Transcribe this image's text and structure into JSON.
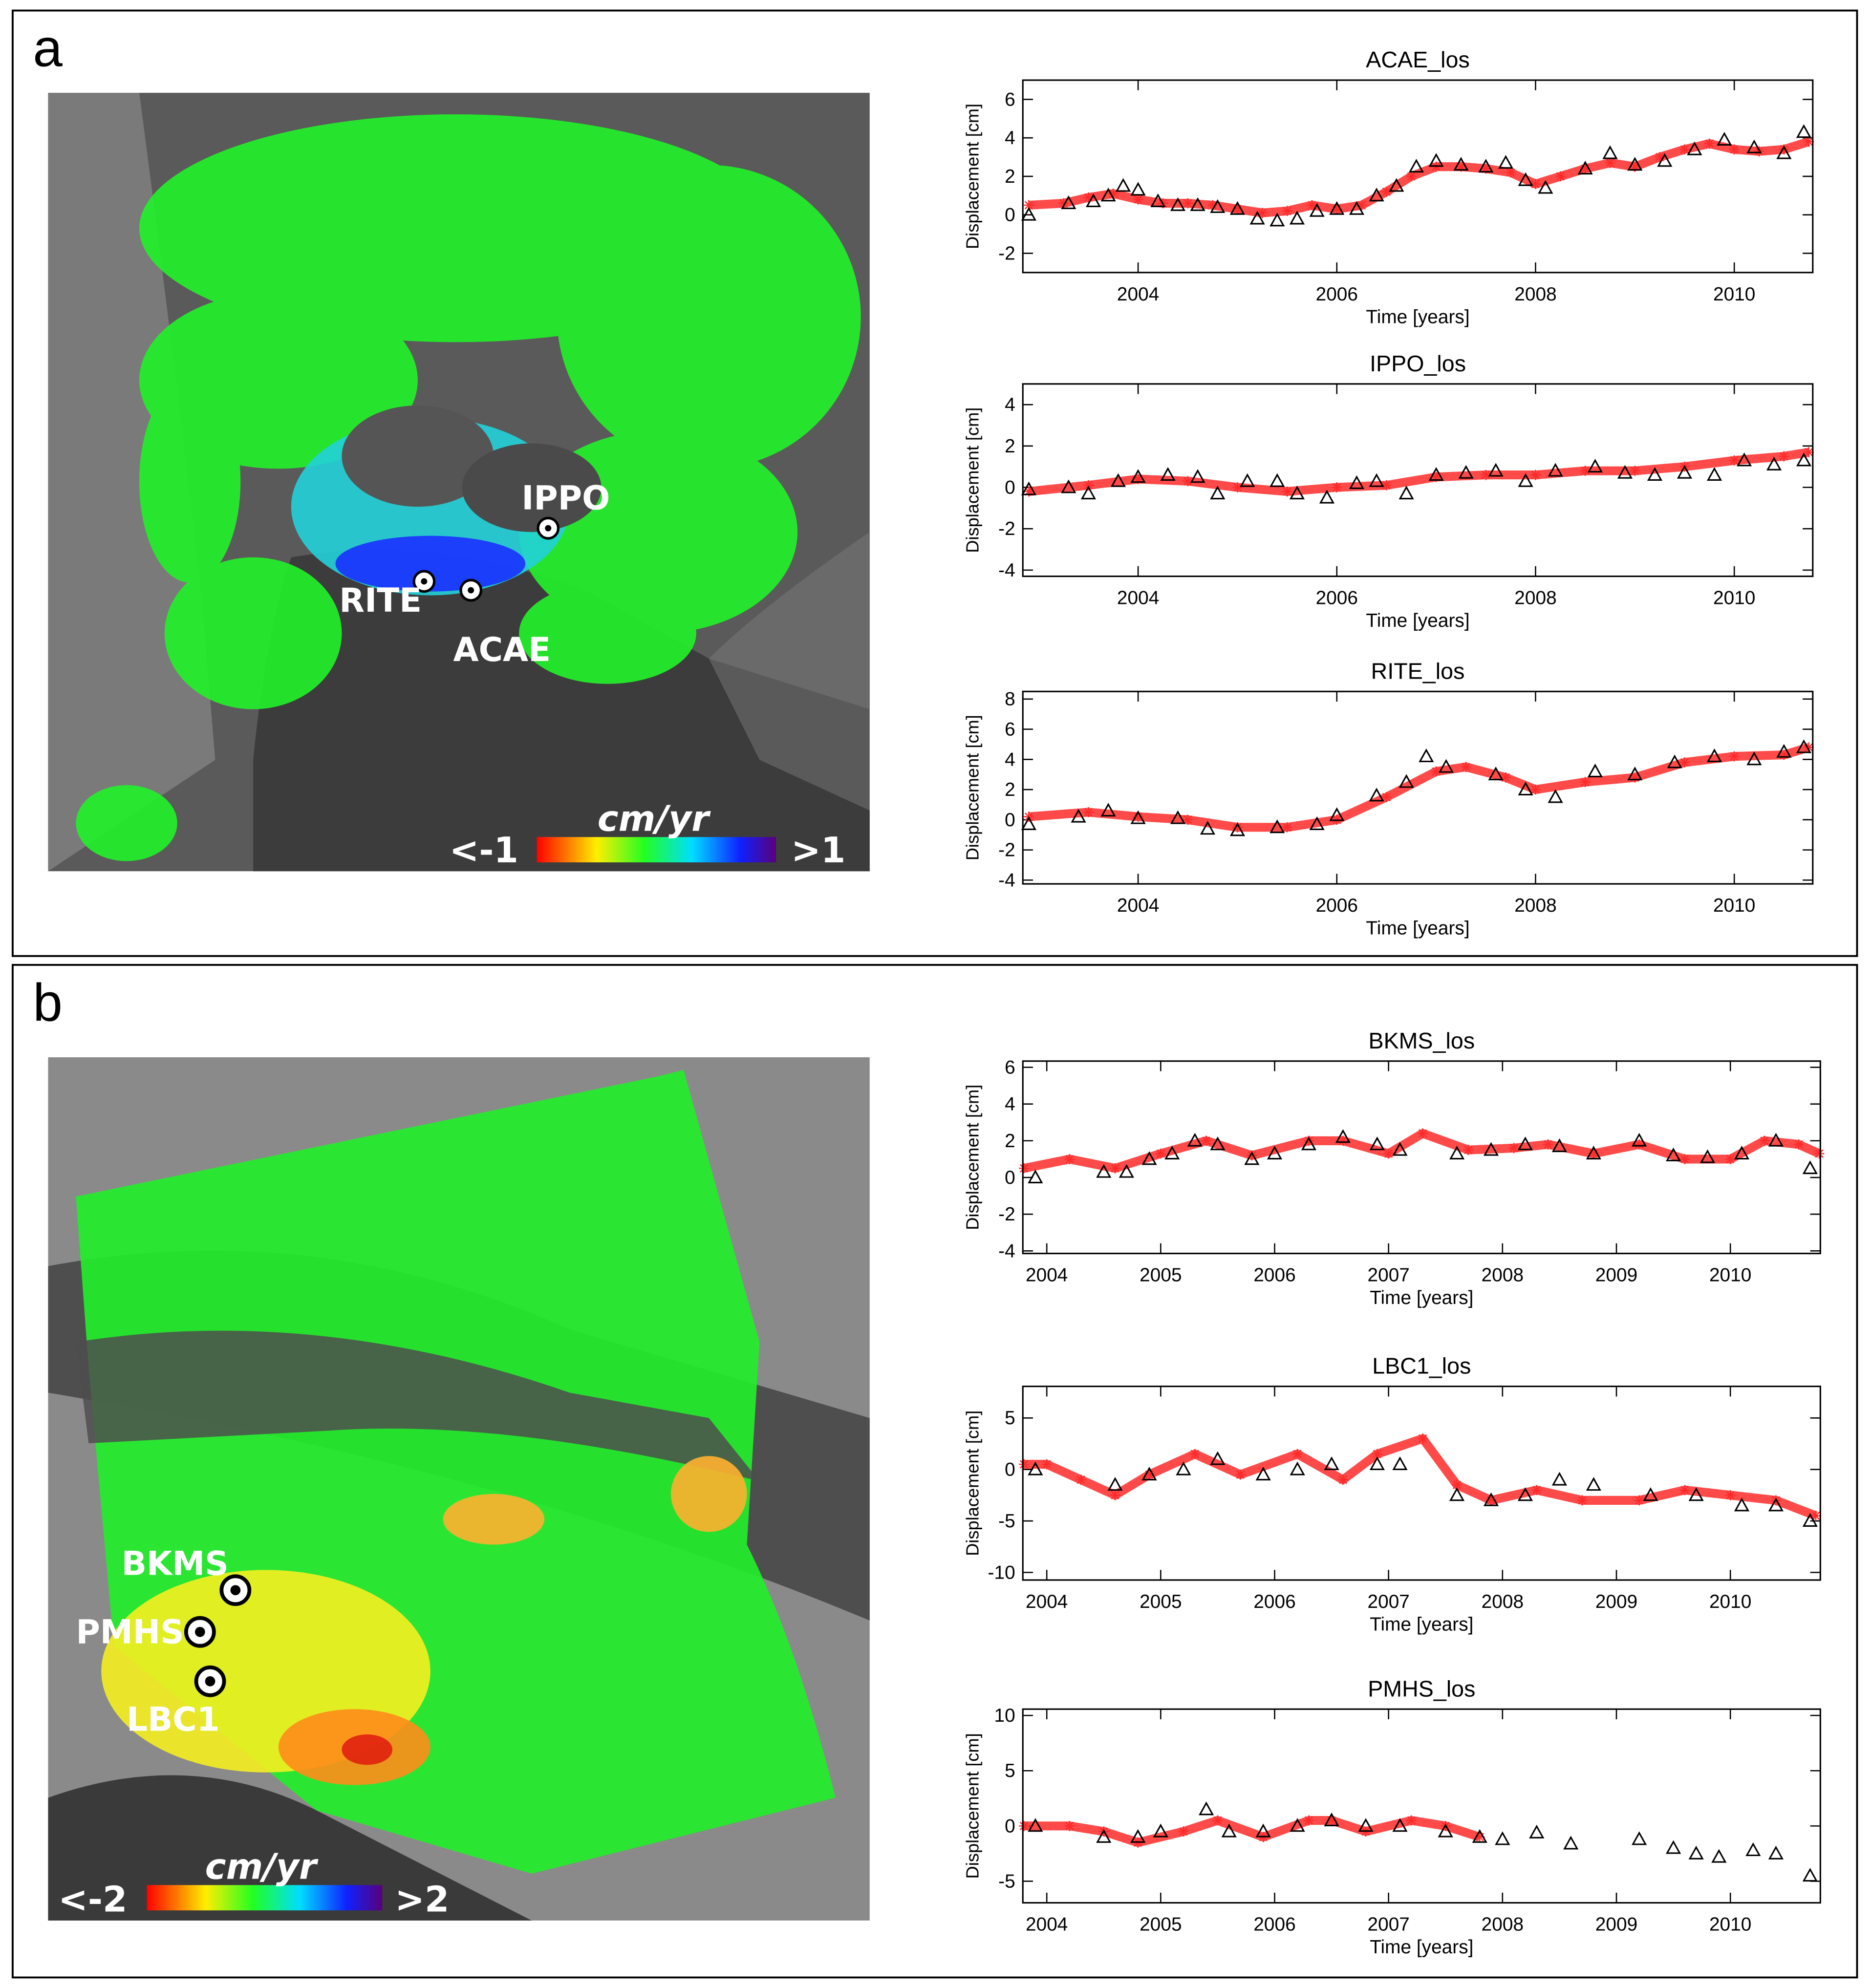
{
  "panels": [
    {
      "label": "a",
      "sites": [
        "IPPO",
        "RITE",
        "ACAE"
      ],
      "unit": "cm/yr",
      "scale_min": "<-1",
      "scale_max": ">1"
    },
    {
      "label": "b",
      "sites": [
        "BKMS",
        "PMHS",
        "LBC1"
      ],
      "unit": "cm/yr",
      "scale_min": "<-2",
      "scale_max": ">2"
    }
  ],
  "chart_data": [
    {
      "type": "scatter",
      "title": "ACAE_los",
      "x_label": "Time [years]",
      "y_label": "Displacement [cm]",
      "xlim": [
        2002.84,
        2010.79
      ],
      "xticks": [
        2004,
        2006,
        2008,
        2010
      ],
      "ylim": [
        -3,
        7
      ],
      "yticks": [
        -2,
        0,
        2,
        4,
        6
      ],
      "grid": false,
      "series": [
        {
          "color": "#ff2a2a",
          "marker": "star",
          "x": [
            2002.9,
            2003.25,
            2003.5,
            2003.75,
            2004,
            2004.25,
            2004.5,
            2004.75,
            2005,
            2005.25,
            2005.5,
            2005.75,
            2006,
            2006.25,
            2006.5,
            2006.75,
            2007,
            2007.25,
            2007.5,
            2007.75,
            2008,
            2008.25,
            2008.5,
            2008.75,
            2009,
            2009.25,
            2009.5,
            2009.75,
            2010,
            2010.25,
            2010.5,
            2010.75
          ],
          "values": [
            0.5,
            0.6,
            0.9,
            1.1,
            0.8,
            0.6,
            0.6,
            0.5,
            0.3,
            0.1,
            0.2,
            0.5,
            0.3,
            0.5,
            1.2,
            2.0,
            2.5,
            2.5,
            2.4,
            2.2,
            1.6,
            2.0,
            2.4,
            2.7,
            2.5,
            3.0,
            3.4,
            3.7,
            3.4,
            3.3,
            3.4,
            3.8
          ]
        },
        {
          "color": "#000000",
          "marker": "triangle",
          "x": [
            2002.9,
            2003.3,
            2003.55,
            2003.7,
            2003.85,
            2004.0,
            2004.2,
            2004.4,
            2004.6,
            2004.8,
            2005.0,
            2005.2,
            2005.4,
            2005.6,
            2005.8,
            2006.0,
            2006.2,
            2006.4,
            2006.6,
            2006.8,
            2007.0,
            2007.25,
            2007.5,
            2007.7,
            2007.9,
            2008.1,
            2008.5,
            2008.75,
            2009.0,
            2009.3,
            2009.6,
            2009.9,
            2010.2,
            2010.5,
            2010.7
          ],
          "values": [
            0,
            0.6,
            0.7,
            1.0,
            1.5,
            1.3,
            0.7,
            0.5,
            0.5,
            0.4,
            0.3,
            -0.2,
            -0.3,
            -0.2,
            0.2,
            0.3,
            0.3,
            1.0,
            1.5,
            2.5,
            2.8,
            2.6,
            2.5,
            2.7,
            1.8,
            1.4,
            2.4,
            3.2,
            2.6,
            2.8,
            3.4,
            3.9,
            3.5,
            3.2,
            4.3
          ]
        }
      ]
    },
    {
      "type": "scatter",
      "title": "IPPO_los",
      "x_label": "Time [years]",
      "y_label": "Displacement [cm]",
      "xlim": [
        2002.84,
        2010.79
      ],
      "xticks": [
        2004,
        2006,
        2008,
        2010
      ],
      "ylim": [
        -4.3,
        5
      ],
      "yticks": [
        -4,
        -2,
        0,
        2,
        4
      ],
      "grid": false,
      "series": [
        {
          "color": "#ff2a2a",
          "marker": "star",
          "x": [
            2002.9,
            2003.5,
            2004,
            2004.5,
            2005,
            2005.5,
            2006,
            2006.5,
            2007,
            2007.5,
            2008,
            2008.5,
            2009,
            2009.5,
            2010,
            2010.5,
            2010.75
          ],
          "values": [
            -0.2,
            0.1,
            0.4,
            0.3,
            0.0,
            -0.2,
            0.0,
            0.1,
            0.5,
            0.6,
            0.6,
            0.8,
            0.8,
            1.0,
            1.3,
            1.5,
            1.7
          ]
        },
        {
          "color": "#000000",
          "marker": "triangle",
          "x": [
            2002.9,
            2003.3,
            2003.5,
            2003.8,
            2004,
            2004.3,
            2004.6,
            2004.8,
            2005.1,
            2005.4,
            2005.6,
            2005.9,
            2006.2,
            2006.4,
            2006.7,
            2007.0,
            2007.3,
            2007.6,
            2007.9,
            2008.2,
            2008.6,
            2008.9,
            2009.2,
            2009.5,
            2009.8,
            2010.1,
            2010.4,
            2010.7
          ],
          "values": [
            -0.1,
            0.0,
            -0.3,
            0.3,
            0.5,
            0.6,
            0.5,
            -0.3,
            0.3,
            0.3,
            -0.3,
            -0.5,
            0.2,
            0.3,
            -0.3,
            0.6,
            0.7,
            0.8,
            0.3,
            0.8,
            1.0,
            0.7,
            0.6,
            0.7,
            0.6,
            1.3,
            1.1,
            1.3
          ]
        }
      ]
    },
    {
      "type": "scatter",
      "title": "RITE_los",
      "x_label": "Time [years]",
      "y_label": "Displacement [cm]",
      "xlim": [
        2002.84,
        2010.79
      ],
      "xticks": [
        2004,
        2006,
        2008,
        2010
      ],
      "ylim": [
        -4.25,
        8.5
      ],
      "yticks": [
        -4,
        -2,
        0,
        2,
        4,
        6,
        8
      ],
      "grid": false,
      "series": [
        {
          "color": "#ff2a2a",
          "marker": "star",
          "x": [
            2002.9,
            2003.5,
            2004,
            2004.5,
            2005,
            2005.5,
            2006,
            2006.5,
            2007,
            2007.3,
            2007.7,
            2008,
            2008.5,
            2009,
            2009.5,
            2010,
            2010.5,
            2010.75
          ],
          "values": [
            0.2,
            0.5,
            0.2,
            0.0,
            -0.5,
            -0.5,
            0.0,
            1.5,
            3.2,
            3.5,
            2.8,
            2.0,
            2.5,
            2.8,
            3.8,
            4.2,
            4.3,
            4.8
          ]
        },
        {
          "color": "#000000",
          "marker": "triangle",
          "x": [
            2002.9,
            2003.4,
            2003.7,
            2004.0,
            2004.4,
            2004.7,
            2005.0,
            2005.4,
            2005.8,
            2006.0,
            2006.4,
            2006.7,
            2006.9,
            2007.1,
            2007.6,
            2007.9,
            2008.2,
            2008.6,
            2009.0,
            2009.4,
            2009.8,
            2010.2,
            2010.5,
            2010.7
          ],
          "values": [
            -0.3,
            0.2,
            0.6,
            0.1,
            0.1,
            -0.6,
            -0.7,
            -0.5,
            -0.3,
            0.3,
            1.6,
            2.5,
            4.2,
            3.5,
            3.0,
            2.0,
            1.5,
            3.2,
            3.0,
            3.8,
            4.2,
            4.0,
            4.5,
            4.8
          ]
        }
      ]
    },
    {
      "type": "scatter",
      "title": "BKMS_los",
      "x_label": "Time [years]",
      "y_label": "Displacement [cm]",
      "xlim": [
        2003.79,
        2010.79
      ],
      "xticks": [
        2004,
        2005,
        2006,
        2007,
        2008,
        2009,
        2010
      ],
      "ylim": [
        -4.14,
        6.34
      ],
      "yticks": [
        -4,
        -2,
        0,
        2,
        4,
        6
      ],
      "grid": false,
      "series": [
        {
          "color": "#ff2a2a",
          "marker": "star",
          "x": [
            2003.8,
            2004.2,
            2004.6,
            2005.0,
            2005.4,
            2005.8,
            2006.3,
            2006.6,
            2007.0,
            2007.3,
            2007.7,
            2008.1,
            2008.4,
            2008.8,
            2009.2,
            2009.6,
            2010.0,
            2010.3,
            2010.6,
            2010.78
          ],
          "values": [
            0.5,
            1.0,
            0.5,
            1.3,
            2.0,
            1.2,
            2.0,
            2.0,
            1.3,
            2.4,
            1.5,
            1.6,
            1.8,
            1.3,
            1.8,
            1.0,
            1.0,
            2.0,
            1.8,
            1.3
          ]
        },
        {
          "color": "#000000",
          "marker": "triangle",
          "x": [
            2003.9,
            2004.5,
            2004.7,
            2004.9,
            2005.1,
            2005.3,
            2005.5,
            2005.8,
            2006.0,
            2006.3,
            2006.6,
            2006.9,
            2007.1,
            2007.6,
            2007.9,
            2008.2,
            2008.5,
            2008.8,
            2009.2,
            2009.5,
            2009.8,
            2010.1,
            2010.4,
            2010.7
          ],
          "values": [
            0.0,
            0.3,
            0.3,
            1.0,
            1.3,
            2.0,
            1.8,
            1.0,
            1.3,
            1.8,
            2.2,
            1.8,
            1.5,
            1.3,
            1.5,
            1.8,
            1.7,
            1.3,
            2.0,
            1.2,
            1.1,
            1.3,
            2.0,
            0.5
          ]
        }
      ]
    },
    {
      "type": "scatter",
      "title": "LBC1_los",
      "x_label": "Time [years]",
      "y_label": "Displacement [cm]",
      "xlim": [
        2003.79,
        2010.79
      ],
      "xticks": [
        2004,
        2005,
        2006,
        2007,
        2008,
        2009,
        2010
      ],
      "ylim": [
        -10.74,
        8.07
      ],
      "yticks": [
        -10,
        -5,
        0,
        5
      ],
      "grid": false,
      "series": [
        {
          "color": "#ff2a2a",
          "marker": "star",
          "x": [
            2003.8,
            2004.0,
            2004.3,
            2004.6,
            2004.9,
            2005.3,
            2005.7,
            2006.2,
            2006.6,
            2006.9,
            2007.3,
            2007.6,
            2007.9,
            2008.3,
            2008.7,
            2009.2,
            2009.6,
            2010.0,
            2010.4,
            2010.75
          ],
          "values": [
            0.5,
            0.5,
            -1.0,
            -2.5,
            -0.5,
            1.5,
            -0.5,
            1.5,
            -1.0,
            1.5,
            3.0,
            -1.5,
            -3,
            -2,
            -3,
            -3,
            -2,
            -2.5,
            -3,
            -4.5
          ]
        },
        {
          "color": "#000000",
          "marker": "triangle",
          "x": [
            2003.9,
            2004.6,
            2004.9,
            2005.2,
            2005.5,
            2005.9,
            2006.2,
            2006.5,
            2006.9,
            2007.1,
            2007.6,
            2007.9,
            2008.2,
            2008.5,
            2008.8,
            2009.3,
            2009.7,
            2010.1,
            2010.4,
            2010.7
          ],
          "values": [
            0,
            -1.5,
            -0.5,
            0,
            1.0,
            -0.5,
            0,
            0.5,
            0.5,
            0.5,
            -2.5,
            -3,
            -2.5,
            -1,
            -1.5,
            -2.5,
            -2.5,
            -3.5,
            -3.5,
            -5
          ]
        }
      ]
    },
    {
      "type": "scatter",
      "title": "PMHS_los",
      "x_label": "Time [years]",
      "y_label": "Displacement [cm]",
      "xlim": [
        2003.79,
        2010.79
      ],
      "xticks": [
        2004,
        2005,
        2006,
        2007,
        2008,
        2009,
        2010
      ],
      "ylim": [
        -6.95,
        10.57
      ],
      "yticks": [
        -5,
        0,
        5,
        10
      ],
      "grid": false,
      "series": [
        {
          "color": "#ff2a2a",
          "marker": "star",
          "x": [
            2003.8,
            2004.2,
            2004.5,
            2004.8,
            2005.2,
            2005.5,
            2005.9,
            2006.3,
            2006.5,
            2006.8,
            2007.2,
            2007.5,
            2007.8
          ],
          "values": [
            0,
            0,
            -0.5,
            -1.5,
            -0.5,
            0.5,
            -1,
            0.5,
            0.5,
            -0.5,
            0.5,
            0,
            -1
          ]
        },
        {
          "color": "#000000",
          "marker": "triangle",
          "x": [
            2003.9,
            2004.5,
            2004.8,
            2005.0,
            2005.4,
            2005.6,
            2005.9,
            2006.2,
            2006.5,
            2006.8,
            2007.1,
            2007.5,
            2007.8,
            2008.0,
            2008.3,
            2008.6,
            2009.2,
            2009.5,
            2009.7,
            2009.9,
            2010.2,
            2010.4,
            2010.7
          ],
          "values": [
            0,
            -1.0,
            -1.0,
            -0.5,
            1.5,
            -0.5,
            -0.5,
            0,
            0.5,
            0,
            0,
            -0.5,
            -1,
            -1.2,
            -0.6,
            -1.6,
            -1.2,
            -2,
            -2.5,
            -2.8,
            -2.2,
            -2.5,
            -4.5
          ]
        }
      ]
    }
  ]
}
